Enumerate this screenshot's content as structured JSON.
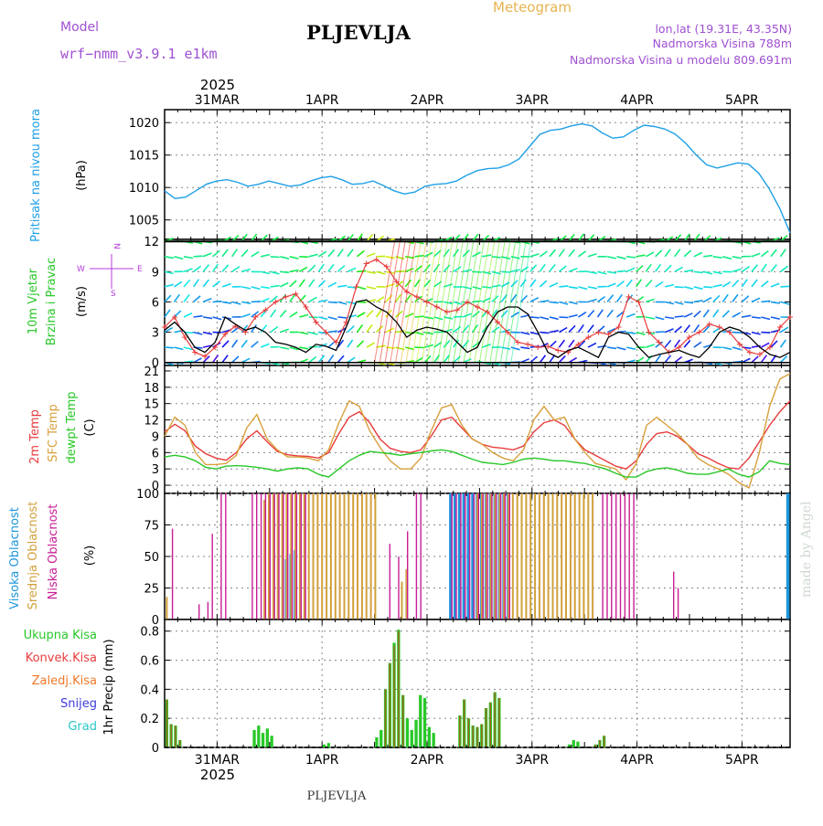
{
  "header": {
    "model_label": "Model",
    "model_name": "wrf−nmm_v3.9.1  e1km",
    "station": "PLJEVLJA",
    "meteogram": "Meteogram",
    "lonlat": "lon,lat (19.31E, 43.35N)",
    "elevation": "Nadmorska Visina 788m",
    "elevation_model": "Nadmorska Visina u modelu 809.691m",
    "year_top": "2025",
    "year_bottom": "2025",
    "footer_station": "PLJEVLJA",
    "watermark": "made by Angel"
  },
  "colors": {
    "pressure": "#1ea0e6",
    "temp2m": "#e83c3c",
    "sfc_temp": "#d8a03c",
    "dewpt": "#28c828",
    "low_cloud": "#c81e96",
    "mid_cloud": "#d2a03c",
    "high_cloud": "#1e96dc",
    "precip_total": "#28c828",
    "precip_convective": "#e83c3c",
    "precip_frozen": "#f07828",
    "precip_snow": "#3c3cdc",
    "precip_graupel": "#28c8c8",
    "wind_label": "#28c828",
    "compass": "#b43cdc"
  },
  "chart_data": [
    {
      "panel": "pressure",
      "type": "line",
      "ylabel_main": "Pritisak na nivou mora",
      "ylabel_unit": "(hPa)",
      "yticks": [
        "1005",
        "1010",
        "1015",
        "1020"
      ],
      "ylim": [
        1002,
        1022
      ],
      "xlim": [
        0,
        143
      ],
      "x_unit": "hours from 30 Mar 12 UTC (3-hourly)",
      "values": [
        1009.5,
        1008.3,
        1008.5,
        1009.5,
        1010.5,
        1011.0,
        1011.2,
        1010.8,
        1010.2,
        1010.5,
        1011.0,
        1010.6,
        1010.2,
        1010.4,
        1011.0,
        1011.5,
        1011.7,
        1011.2,
        1010.5,
        1010.6,
        1011.0,
        1010.3,
        1009.5,
        1009.0,
        1009.3,
        1010.2,
        1010.5,
        1010.6,
        1011.0,
        1011.9,
        1012.6,
        1012.9,
        1013.0,
        1013.5,
        1014.4,
        1016.3,
        1018.2,
        1018.8,
        1019.0,
        1019.5,
        1019.8,
        1019.5,
        1018.4,
        1017.6,
        1017.8,
        1018.8,
        1019.6,
        1019.4,
        1019.0,
        1018.2,
        1016.8,
        1015.0,
        1013.5,
        1013.0,
        1013.4,
        1013.8,
        1013.6,
        1012.2,
        1009.8,
        1006.8,
        1003.0
      ]
    },
    {
      "panel": "wind",
      "type": "line",
      "ylabel_main": "10m Vjetar",
      "ylabel_sub": "Brzina i Pravac",
      "ylabel_unit": "(m/s)",
      "compass": {
        "top": "N",
        "west": "W",
        "east": "E",
        "bottom": "S"
      },
      "yticks": [
        "0",
        "3",
        "6",
        "9",
        "12"
      ],
      "ylim": [
        -0.3,
        12.2
      ],
      "speed": [
        3.2,
        4.0,
        3.0,
        1.5,
        1.0,
        2.0,
        4.5,
        3.8,
        3.2,
        3.5,
        3.0,
        2.0,
        1.8,
        1.5,
        1.0,
        1.8,
        1.6,
        1.2,
        3.5,
        6.0,
        6.2,
        5.5,
        5.0,
        4.0,
        2.5,
        3.2,
        3.5,
        3.3,
        3.0,
        2.0,
        1.0,
        1.5,
        3.5,
        5.0,
        5.5,
        5.5,
        4.8,
        3.0,
        1.0,
        0.5,
        1.2,
        1.5,
        1.0,
        0.5,
        2.5,
        3.0,
        2.8,
        1.5,
        0.5,
        0.8,
        1.0,
        1.2,
        0.8,
        0.5,
        1.5,
        3.0,
        3.5,
        3.2,
        2.5,
        1.5,
        0.8,
        0.5,
        1.0
      ],
      "gust": [
        3.5,
        4.5,
        2.5,
        1.0,
        0.6,
        1.5,
        2.8,
        3.6,
        3.0,
        4.5,
        5.2,
        6.0,
        6.5,
        6.8,
        5.5,
        4.0,
        3.0,
        2.0,
        4.0,
        7.5,
        9.8,
        10.2,
        9.5,
        8.0,
        7.0,
        6.5,
        6.0,
        5.5,
        5.0,
        5.2,
        6.0,
        5.5,
        5.0,
        4.0,
        3.0,
        2.0,
        1.8,
        1.5,
        1.6,
        1.2,
        1.0,
        1.8,
        2.5,
        3.0,
        2.8,
        3.5,
        6.5,
        6.0,
        3.0,
        2.0,
        1.0,
        1.5,
        2.5,
        3.0,
        3.8,
        3.5,
        3.0,
        1.8,
        1.0,
        0.8,
        1.5,
        3.5,
        4.5
      ],
      "rows_speed": [
        12,
        10.5,
        9,
        7.5,
        6,
        4.5,
        3,
        1.5,
        0
      ]
    },
    {
      "panel": "temperature",
      "type": "line",
      "ylabel_lines": [
        "2m Temp",
        "SFC Temp",
        "dewpt Temp"
      ],
      "ylabel_unit": "(C)",
      "yticks": [
        "0",
        "3",
        "6",
        "9",
        "12",
        "15",
        "18",
        "21"
      ],
      "ylim": [
        -1.5,
        22
      ],
      "series": [
        {
          "name": "2m Temp",
          "key": "temp2m",
          "values": [
            9.8,
            11.2,
            10.0,
            7.2,
            5.8,
            5.0,
            4.6,
            6.0,
            8.5,
            10.0,
            8.0,
            6.2,
            5.6,
            5.4,
            5.3,
            5.0,
            6.0,
            9.5,
            12.5,
            13.5,
            11.5,
            8.5,
            6.8,
            6.2,
            6.0,
            6.5,
            9.0,
            12.0,
            12.5,
            10.5,
            8.5,
            7.5,
            7.0,
            6.8,
            6.5,
            7.2,
            9.8,
            11.5,
            12.0,
            11.0,
            8.5,
            6.5,
            5.5,
            4.5,
            3.5,
            3.0,
            4.5,
            7.5,
            9.5,
            9.8,
            9.0,
            7.5,
            5.8,
            5.0,
            4.0,
            3.2,
            3.0,
            5.0,
            8.0,
            11.0,
            13.5,
            15.5
          ]
        },
        {
          "name": "SFC Temp",
          "key": "sfc_temp",
          "values": [
            9.0,
            12.5,
            11.0,
            6.0,
            3.8,
            3.8,
            4.0,
            5.5,
            10.5,
            13.0,
            8.5,
            6.5,
            5.2,
            5.2,
            5.0,
            4.5,
            6.5,
            11.5,
            15.5,
            14.5,
            10.0,
            7.0,
            4.5,
            3.0,
            3.0,
            5.0,
            10.0,
            14.2,
            14.8,
            11.0,
            8.5,
            7.5,
            6.0,
            5.0,
            4.5,
            6.5,
            12.0,
            14.5,
            12.0,
            12.5,
            8.5,
            6.0,
            4.0,
            3.5,
            3.0,
            1.0,
            4.0,
            11.0,
            12.5,
            11.0,
            9.5,
            7.5,
            5.0,
            3.8,
            3.0,
            2.0,
            0.5,
            -0.5,
            6.0,
            14.5,
            19.5,
            20.5
          ]
        },
        {
          "name": "dewpt Temp",
          "key": "dewpt",
          "values": [
            5.2,
            5.5,
            5.2,
            4.5,
            3.3,
            3.0,
            3.5,
            3.6,
            3.5,
            3.3,
            3.0,
            2.6,
            3.0,
            3.2,
            3.0,
            2.0,
            1.5,
            3.0,
            4.5,
            5.5,
            6.2,
            6.0,
            5.8,
            5.5,
            5.8,
            6.0,
            6.3,
            6.5,
            6.2,
            5.5,
            4.8,
            4.2,
            4.0,
            3.8,
            4.2,
            4.8,
            5.0,
            4.8,
            4.5,
            4.5,
            4.2,
            4.0,
            3.5,
            3.0,
            2.2,
            1.5,
            1.5,
            2.5,
            3.0,
            3.2,
            2.8,
            2.2,
            2.0,
            2.0,
            2.5,
            3.0,
            2.0,
            1.5,
            2.5,
            4.5,
            4.0,
            3.8
          ]
        }
      ]
    },
    {
      "panel": "cloud",
      "type": "bar",
      "ylabel_lines": [
        "Visoka Oblacnost",
        "Srednja Oblacnost",
        "Niska Oblacnost"
      ],
      "ylabel_unit": "(%)",
      "yticks": [
        "0",
        "25",
        "50",
        "75",
        "100"
      ],
      "ylim": [
        0,
        100
      ],
      "low": [
        0,
        72,
        0,
        0,
        0,
        0,
        0,
        12,
        0,
        14,
        68,
        0,
        100,
        100,
        0,
        0,
        0,
        0,
        0,
        100,
        100,
        100,
        100,
        100,
        100,
        100,
        100,
        100,
        100,
        100,
        100,
        100,
        0,
        0,
        0,
        0,
        0,
        0,
        0,
        0,
        0,
        0,
        0,
        0,
        0,
        0,
        0,
        0,
        0,
        0,
        60,
        0,
        50,
        0,
        70,
        0,
        100,
        100,
        0,
        0,
        0,
        0,
        0,
        0,
        100,
        100,
        100,
        100,
        100,
        100,
        100,
        100,
        100,
        100,
        100,
        100,
        100,
        100,
        0,
        0,
        0,
        0,
        0,
        0,
        0,
        0,
        0,
        0,
        0,
        0,
        0,
        0,
        0,
        0,
        0,
        0,
        0,
        0,
        100,
        100,
        100,
        100,
        100,
        100,
        100,
        100,
        0,
        0,
        0,
        0,
        0,
        0,
        0,
        0,
        38,
        25,
        0,
        0,
        0,
        0,
        0,
        0,
        0,
        0,
        0,
        0,
        0,
        0,
        0,
        0,
        0,
        0,
        0,
        0,
        0,
        0,
        0,
        0,
        0,
        0,
        0
      ],
      "mid": [
        18,
        0,
        0,
        0,
        0,
        0,
        0,
        0,
        0,
        0,
        0,
        0,
        0,
        0,
        0,
        0,
        0,
        0,
        0,
        0,
        0,
        0,
        95,
        100,
        100,
        100,
        100,
        100,
        100,
        100,
        100,
        100,
        100,
        100,
        100,
        100,
        100,
        100,
        100,
        100,
        100,
        100,
        100,
        100,
        100,
        100,
        100,
        100,
        0,
        0,
        0,
        0,
        0,
        30,
        40,
        0,
        0,
        0,
        0,
        0,
        0,
        0,
        0,
        0,
        0,
        0,
        0,
        0,
        0,
        0,
        100,
        100,
        100,
        100,
        100,
        100,
        100,
        100,
        100,
        100,
        100,
        100,
        100,
        100,
        100,
        100,
        100,
        100,
        100,
        100,
        100,
        100,
        100,
        100,
        100,
        100,
        100,
        0,
        0,
        0,
        0,
        0,
        0,
        0,
        0,
        0,
        0,
        0,
        0,
        0,
        0,
        0,
        0,
        0,
        0,
        0,
        0,
        0,
        0,
        0,
        0,
        0,
        0,
        0,
        0,
        0,
        0,
        0,
        0,
        0,
        0,
        0,
        0,
        0,
        0,
        0,
        0,
        0,
        0,
        0,
        0,
        0,
        0,
        0,
        0,
        0
      ],
      "high": [
        0,
        0,
        0,
        0,
        0,
        0,
        0,
        0,
        0,
        0,
        0,
        0,
        0,
        0,
        0,
        0,
        0,
        0,
        0,
        0,
        0,
        0,
        0,
        0,
        0,
        0,
        0,
        48,
        52,
        55,
        0,
        0,
        0,
        0,
        0,
        0,
        0,
        0,
        0,
        0,
        0,
        0,
        0,
        0,
        0,
        0,
        0,
        0,
        0,
        0,
        0,
        0,
        0,
        0,
        0,
        0,
        0,
        0,
        0,
        0,
        0,
        0,
        0,
        0,
        100,
        100,
        100,
        100,
        100,
        100,
        100,
        100,
        100,
        100,
        100,
        100,
        100,
        100,
        0,
        0,
        0,
        0,
        0,
        0,
        0,
        0,
        0,
        0,
        0,
        0,
        0,
        0,
        0,
        0,
        0,
        0,
        0,
        0,
        0,
        0,
        0,
        0,
        0,
        0,
        0,
        0,
        0,
        0,
        0,
        0,
        0,
        0,
        0,
        0,
        0,
        0,
        0,
        0,
        0,
        0,
        0,
        0,
        0,
        0,
        0,
        0,
        0,
        0,
        0,
        0,
        0,
        0,
        0,
        0,
        0,
        0,
        0,
        0,
        0,
        0,
        100,
        100,
        100
      ]
    },
    {
      "panel": "precip",
      "type": "bar",
      "ylabel": "1hr Precip (mm)",
      "legend": [
        "Ukupna Kisa",
        "Konvek.Kisa",
        "Zaledj.Kisa",
        "Snijeg",
        "Grad"
      ],
      "yticks": [
        "0",
        "0.2",
        "0.4",
        "0.6",
        "0.8"
      ],
      "ylim": [
        0,
        0.88
      ],
      "bars": [
        {
          "x": 0.5,
          "total": 0.33,
          "conv": 0.33
        },
        {
          "x": 1.5,
          "total": 0.16,
          "conv": 0.16
        },
        {
          "x": 2.5,
          "total": 0.15,
          "conv": 0.15
        },
        {
          "x": 3.5,
          "total": 0.05,
          "conv": 0.05
        },
        {
          "x": 20.5,
          "total": 0.12,
          "conv": 0.0
        },
        {
          "x": 21.5,
          "total": 0.15,
          "conv": 0.0
        },
        {
          "x": 22.5,
          "total": 0.1,
          "conv": 0.0
        },
        {
          "x": 23.5,
          "total": 0.13,
          "conv": 0.0
        },
        {
          "x": 24.5,
          "total": 0.08,
          "conv": 0.0
        },
        {
          "x": 36.5,
          "total": 0.02,
          "conv": 0.0
        },
        {
          "x": 37.5,
          "total": 0.03,
          "conv": 0.0
        },
        {
          "x": 48.5,
          "total": 0.07,
          "conv": 0.0
        },
        {
          "x": 49.5,
          "total": 0.12,
          "conv": 0.0
        },
        {
          "x": 50.5,
          "total": 0.4,
          "conv": 0.4
        },
        {
          "x": 51.5,
          "total": 0.58,
          "conv": 0.58
        },
        {
          "x": 52.5,
          "total": 0.72,
          "conv": 0.7
        },
        {
          "x": 53.5,
          "total": 0.81,
          "conv": 0.8
        },
        {
          "x": 54.5,
          "total": 0.36,
          "conv": 0.36
        },
        {
          "x": 55.5,
          "total": 0.2,
          "conv": 0.0
        },
        {
          "x": 56.5,
          "total": 0.12,
          "conv": 0.0
        },
        {
          "x": 57.5,
          "total": 0.19,
          "conv": 0.0
        },
        {
          "x": 58.5,
          "total": 0.36,
          "conv": 0.0
        },
        {
          "x": 59.5,
          "total": 0.34,
          "conv": 0.0
        },
        {
          "x": 60.5,
          "total": 0.14,
          "conv": 0.0
        },
        {
          "x": 61.5,
          "total": 0.1,
          "conv": 0.0
        },
        {
          "x": 67.5,
          "total": 0.22,
          "conv": 0.22
        },
        {
          "x": 68.5,
          "total": 0.33,
          "conv": 0.33
        },
        {
          "x": 69.5,
          "total": 0.2,
          "conv": 0.2
        },
        {
          "x": 70.5,
          "total": 0.15,
          "conv": 0.15
        },
        {
          "x": 71.5,
          "total": 0.14,
          "conv": 0.14
        },
        {
          "x": 72.5,
          "total": 0.16,
          "conv": 0.16
        },
        {
          "x": 73.5,
          "total": 0.27,
          "conv": 0.27
        },
        {
          "x": 74.5,
          "total": 0.31,
          "conv": 0.31
        },
        {
          "x": 75.5,
          "total": 0.38,
          "conv": 0.38
        },
        {
          "x": 76.5,
          "total": 0.34,
          "conv": 0.34
        },
        {
          "x": 92.5,
          "total": 0.02,
          "conv": 0.0
        },
        {
          "x": 93.5,
          "total": 0.05,
          "conv": 0.0
        },
        {
          "x": 94.5,
          "total": 0.04,
          "conv": 0.0
        },
        {
          "x": 98.5,
          "total": 0.02,
          "conv": 0.02
        },
        {
          "x": 99.5,
          "total": 0.05,
          "conv": 0.05
        },
        {
          "x": 100.5,
          "total": 0.08,
          "conv": 0.08
        }
      ]
    }
  ],
  "days": [
    {
      "label": "31MAR",
      "hour": 12
    },
    {
      "label": "1APR",
      "hour": 36
    },
    {
      "label": "2APR",
      "hour": 60
    },
    {
      "label": "3APR",
      "hour": 84
    },
    {
      "label": "4APR",
      "hour": 108
    },
    {
      "label": "5APR",
      "hour": 132
    }
  ]
}
